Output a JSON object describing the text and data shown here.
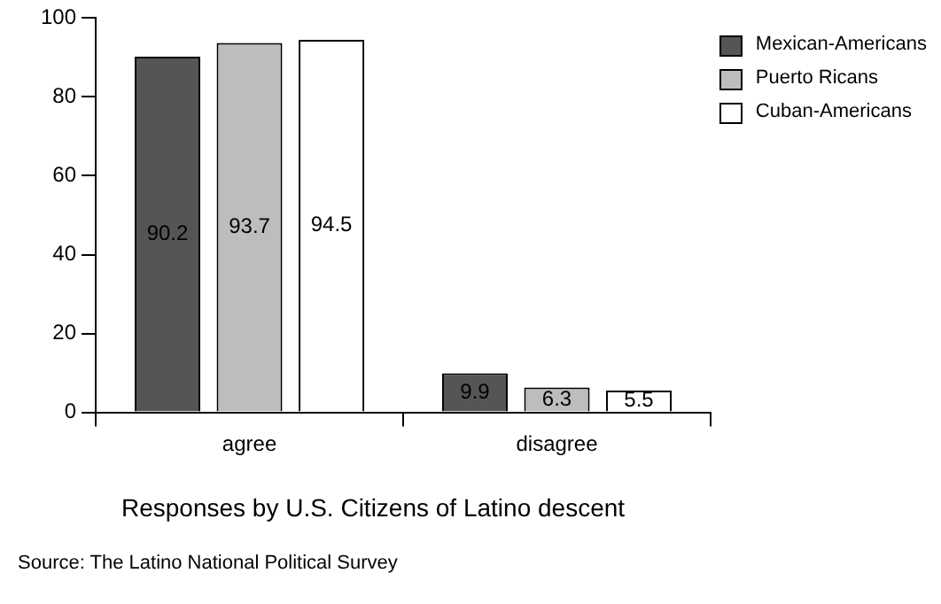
{
  "chart_data": {
    "type": "bar",
    "title": "Responses by U.S. Citizens of Latino descent",
    "categories": [
      "agree",
      "disagree"
    ],
    "series": [
      {
        "name": "Mexican-Americans",
        "color": "#555555",
        "values": [
          90.2,
          9.9
        ]
      },
      {
        "name": "Puerto Ricans",
        "color": "#bdbdbd",
        "values": [
          93.7,
          6.3
        ]
      },
      {
        "name": "Cuban-Americans",
        "color": "#ffffff",
        "values": [
          94.5,
          5.5
        ]
      }
    ],
    "ylim": [
      0,
      100
    ],
    "yticks": [
      0,
      20,
      40,
      60,
      80,
      100
    ],
    "grid": false,
    "legend": "top right",
    "data_labels": true,
    "annotations": [
      "Source: The Latino National Political Survey"
    ]
  }
}
